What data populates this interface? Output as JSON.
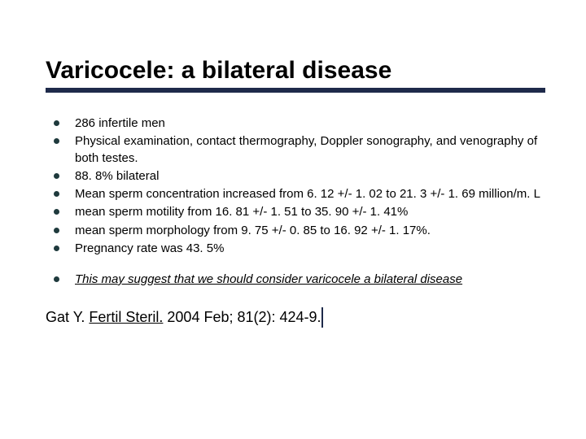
{
  "title": "Varicocele: a bilateral disease",
  "title_underline_color": "#1e2a4a",
  "bullet_color": "#1f3a3d",
  "text_color": "#000000",
  "background_color": "#ffffff",
  "title_fontsize": 30,
  "body_fontsize": 15,
  "citation_fontsize": 18,
  "bullets": [
    "286 infertile men",
    "Physical examination, contact thermography, Doppler sonography, and venography of both testes.",
    "88. 8% bilateral",
    "Mean sperm concentration increased from 6. 12 +/- 1. 02 to 21. 3 +/- 1. 69 million/m. L",
    "mean sperm motility from 16. 81 +/- 1. 51 to 35. 90 +/- 1. 41%",
    "mean sperm morphology from 9. 75 +/- 0. 85 to 16. 92 +/- 1. 17%.",
    "Pregnancy rate was 43. 5%"
  ],
  "conclusion": "This may suggest that we should consider varicocele a bilateral disease",
  "citation": {
    "author": "Gat Y. ",
    "journal": "Fertil Steril.",
    "rest": " 2004 Feb; 81(2): 424-9."
  }
}
